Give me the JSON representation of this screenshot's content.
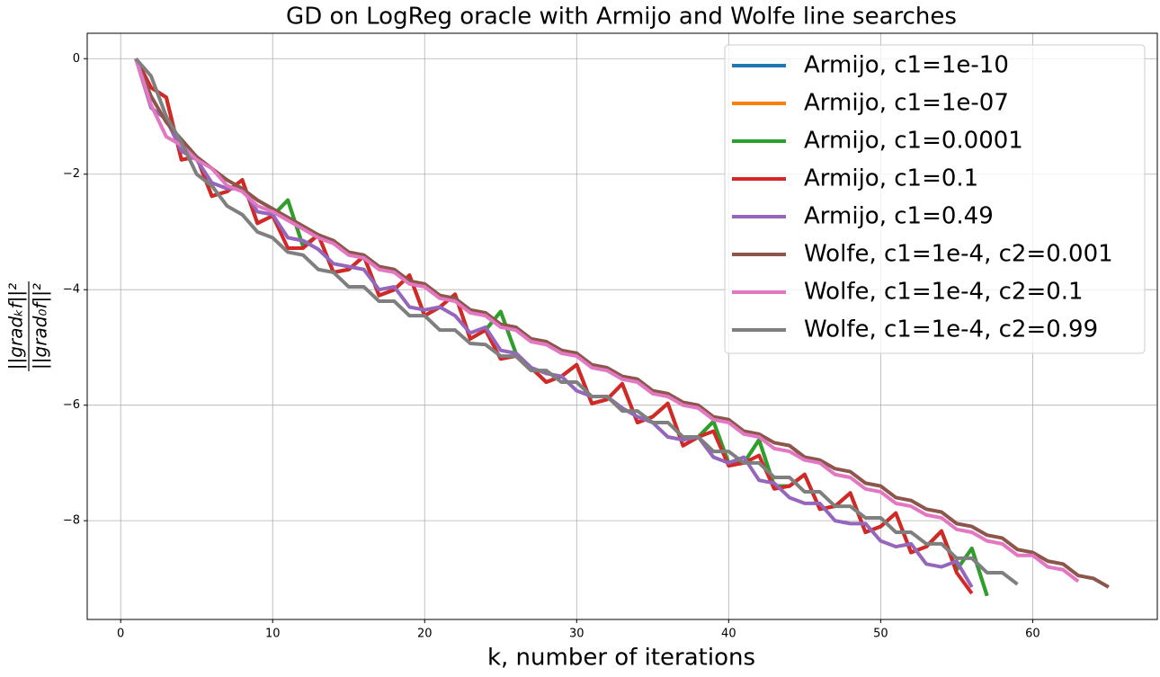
{
  "chart_data": {
    "type": "line",
    "title": "GD on LogReg oracle with Armijo and Wolfe line searches",
    "x_label": "k, number of iterations",
    "y_label": {
      "numerator": "||gradₖf||²",
      "denominator": "||grad₀f||²"
    },
    "xlim": [
      -2.2,
      68.2
    ],
    "ylim": [
      -9.71,
      0.44
    ],
    "xticks": [
      0,
      10,
      20,
      30,
      40,
      50,
      60
    ],
    "yticks": [
      {
        "value": 0,
        "label": "0"
      },
      {
        "value": -2,
        "label": "−2"
      },
      {
        "value": -4,
        "label": "−4"
      },
      {
        "value": -6,
        "label": "−6"
      },
      {
        "value": -8,
        "label": "−8"
      }
    ],
    "grid": true,
    "legend": "upper right",
    "series": [
      {
        "name": "Armijo, c1=1e-10",
        "color": "#1f77b4",
        "x": [
          1,
          2,
          3,
          4,
          5,
          6,
          7,
          8,
          9,
          10,
          11,
          12,
          13,
          14,
          15,
          16,
          17,
          18,
          19,
          20,
          21,
          22,
          23,
          24,
          25,
          26,
          27,
          28,
          29,
          30,
          31,
          32,
          33,
          34,
          35,
          36,
          37,
          38,
          39,
          40,
          41,
          42,
          43,
          44,
          45,
          46,
          47,
          48,
          49,
          50,
          51,
          52,
          53,
          54,
          55,
          56,
          57
        ],
        "values": [
          0,
          -0.5,
          -0.67,
          -1.75,
          -1.7,
          -2.38,
          -2.3,
          -2.1,
          -2.85,
          -2.72,
          -2.45,
          -3.25,
          -3.05,
          -3.7,
          -3.65,
          -3.42,
          -4.1,
          -4.0,
          -3.75,
          -4.45,
          -4.3,
          -4.08,
          -4.85,
          -4.7,
          -4.38,
          -5.1,
          -5.35,
          -5.6,
          -5.5,
          -5.3,
          -5.97,
          -5.9,
          -5.63,
          -6.3,
          -6.2,
          -5.97,
          -6.7,
          -6.55,
          -6.28,
          -7.0,
          -7.0,
          -6.6,
          -7.4,
          -7.4,
          -7.2,
          -7.8,
          -7.75,
          -7.52,
          -8.2,
          -8.1,
          -7.87,
          -8.55,
          -8.45,
          -8.18,
          -8.85,
          -8.48,
          -9.3
        ]
      },
      {
        "name": "Armijo, c1=1e-07",
        "color": "#ff7f0e",
        "x": [
          1,
          2,
          3,
          4,
          5,
          6,
          7,
          8,
          9,
          10,
          11,
          12,
          13,
          14,
          15,
          16,
          17,
          18,
          19,
          20,
          21,
          22,
          23,
          24,
          25,
          26,
          27,
          28,
          29,
          30,
          31,
          32,
          33,
          34,
          35,
          36,
          37,
          38,
          39,
          40,
          41,
          42,
          43,
          44,
          45,
          46,
          47,
          48,
          49,
          50,
          51,
          52,
          53,
          54,
          55,
          56,
          57
        ],
        "values": [
          0,
          -0.5,
          -0.67,
          -1.75,
          -1.7,
          -2.38,
          -2.3,
          -2.1,
          -2.85,
          -2.72,
          -2.45,
          -3.25,
          -3.05,
          -3.7,
          -3.65,
          -3.42,
          -4.1,
          -4.0,
          -3.75,
          -4.45,
          -4.3,
          -4.08,
          -4.85,
          -4.7,
          -4.38,
          -5.1,
          -5.35,
          -5.6,
          -5.5,
          -5.3,
          -5.97,
          -5.9,
          -5.63,
          -6.3,
          -6.2,
          -5.97,
          -6.7,
          -6.55,
          -6.28,
          -7.0,
          -7.0,
          -6.6,
          -7.4,
          -7.4,
          -7.2,
          -7.8,
          -7.75,
          -7.52,
          -8.2,
          -8.1,
          -7.87,
          -8.55,
          -8.45,
          -8.18,
          -8.85,
          -8.48,
          -9.3
        ]
      },
      {
        "name": "Armijo, c1=0.0001",
        "color": "#2ca02c",
        "x": [
          1,
          2,
          3,
          4,
          5,
          6,
          7,
          8,
          9,
          10,
          11,
          12,
          13,
          14,
          15,
          16,
          17,
          18,
          19,
          20,
          21,
          22,
          23,
          24,
          25,
          26,
          27,
          28,
          29,
          30,
          31,
          32,
          33,
          34,
          35,
          36,
          37,
          38,
          39,
          40,
          41,
          42,
          43,
          44,
          45,
          46,
          47,
          48,
          49,
          50,
          51,
          52,
          53,
          54,
          55,
          56,
          57
        ],
        "values": [
          0,
          -0.5,
          -0.67,
          -1.75,
          -1.7,
          -2.38,
          -2.3,
          -2.1,
          -2.85,
          -2.72,
          -2.45,
          -3.25,
          -3.05,
          -3.7,
          -3.65,
          -3.42,
          -4.1,
          -4.0,
          -3.75,
          -4.45,
          -4.3,
          -4.08,
          -4.85,
          -4.7,
          -4.38,
          -5.1,
          -5.35,
          -5.6,
          -5.5,
          -5.3,
          -5.97,
          -5.9,
          -5.63,
          -6.3,
          -6.2,
          -5.97,
          -6.7,
          -6.55,
          -6.28,
          -7.0,
          -7.0,
          -6.6,
          -7.4,
          -7.4,
          -7.2,
          -7.8,
          -7.75,
          -7.52,
          -8.2,
          -8.1,
          -7.87,
          -8.55,
          -8.45,
          -8.18,
          -8.85,
          -8.48,
          -9.3
        ]
      },
      {
        "name": "Armijo, c1=0.1",
        "color": "#d62728",
        "x": [
          1,
          2,
          3,
          4,
          5,
          6,
          7,
          8,
          9,
          10,
          11,
          12,
          13,
          14,
          15,
          16,
          17,
          18,
          19,
          20,
          21,
          22,
          23,
          24,
          25,
          26,
          27,
          28,
          29,
          30,
          31,
          32,
          33,
          34,
          35,
          36,
          37,
          38,
          39,
          40,
          41,
          42,
          43,
          44,
          45,
          46,
          47,
          48,
          49,
          50,
          51,
          52,
          53,
          54,
          55,
          56
        ],
        "values": [
          0,
          -0.5,
          -0.67,
          -1.75,
          -1.7,
          -2.38,
          -2.3,
          -2.1,
          -2.85,
          -2.72,
          -3.28,
          -3.28,
          -3.05,
          -3.7,
          -3.65,
          -3.42,
          -4.1,
          -4.0,
          -3.75,
          -4.45,
          -4.3,
          -4.08,
          -4.85,
          -4.7,
          -5.2,
          -5.15,
          -5.35,
          -5.6,
          -5.5,
          -5.3,
          -5.97,
          -5.9,
          -5.63,
          -6.3,
          -6.2,
          -5.97,
          -6.7,
          -6.55,
          -6.45,
          -7.05,
          -7.0,
          -6.87,
          -7.45,
          -7.4,
          -7.2,
          -7.8,
          -7.75,
          -7.52,
          -8.2,
          -8.1,
          -7.87,
          -8.55,
          -8.45,
          -8.18,
          -8.9,
          -9.26
        ]
      },
      {
        "name": "Armijo, c1=0.49",
        "color": "#9467bd",
        "x": [
          1,
          2,
          3,
          4,
          5,
          6,
          7,
          8,
          9,
          10,
          11,
          12,
          13,
          14,
          15,
          16,
          17,
          18,
          19,
          20,
          21,
          22,
          23,
          24,
          25,
          26,
          27,
          28,
          29,
          30,
          31,
          32,
          33,
          34,
          35,
          36,
          37,
          38,
          39,
          40,
          41,
          42,
          43,
          44,
          45,
          46,
          47,
          48,
          49,
          50,
          51,
          52,
          53,
          54,
          55,
          56
        ],
        "values": [
          0,
          -0.85,
          -1.05,
          -1.6,
          -1.75,
          -2.15,
          -2.25,
          -2.25,
          -2.65,
          -2.7,
          -3.1,
          -3.15,
          -3.3,
          -3.55,
          -3.6,
          -3.65,
          -4.0,
          -3.95,
          -4.3,
          -4.35,
          -4.3,
          -4.45,
          -4.75,
          -4.65,
          -5.05,
          -5.1,
          -5.35,
          -5.45,
          -5.5,
          -5.75,
          -5.85,
          -5.85,
          -6.05,
          -6.2,
          -6.3,
          -6.55,
          -6.6,
          -6.55,
          -6.9,
          -7.0,
          -6.9,
          -7.3,
          -7.35,
          -7.6,
          -7.7,
          -7.7,
          -8.0,
          -8.05,
          -8.05,
          -8.35,
          -8.45,
          -8.4,
          -8.75,
          -8.8,
          -8.7,
          -9.15
        ]
      },
      {
        "name": "Wolfe, c1=1e-4, c2=0.001",
        "color": "#8c564b",
        "x": [
          1,
          2,
          3,
          4,
          5,
          6,
          7,
          8,
          9,
          10,
          11,
          12,
          13,
          14,
          15,
          16,
          17,
          18,
          19,
          20,
          21,
          22,
          23,
          24,
          25,
          26,
          27,
          28,
          29,
          30,
          31,
          32,
          33,
          34,
          35,
          36,
          37,
          38,
          39,
          40,
          41,
          42,
          43,
          44,
          45,
          46,
          47,
          48,
          49,
          50,
          51,
          52,
          53,
          54,
          55,
          56,
          57,
          58,
          59,
          60,
          61,
          62,
          63,
          64,
          65
        ],
        "values": [
          0,
          -0.65,
          -1.1,
          -1.4,
          -1.7,
          -1.9,
          -2.1,
          -2.25,
          -2.45,
          -2.6,
          -2.75,
          -2.9,
          -3.05,
          -3.15,
          -3.35,
          -3.4,
          -3.6,
          -3.65,
          -3.85,
          -3.9,
          -4.1,
          -4.15,
          -4.35,
          -4.4,
          -4.6,
          -4.65,
          -4.85,
          -4.9,
          -5.05,
          -5.1,
          -5.3,
          -5.35,
          -5.5,
          -5.55,
          -5.75,
          -5.8,
          -5.95,
          -6.0,
          -6.2,
          -6.25,
          -6.45,
          -6.5,
          -6.65,
          -6.7,
          -6.9,
          -6.95,
          -7.1,
          -7.15,
          -7.35,
          -7.4,
          -7.6,
          -7.65,
          -7.8,
          -7.85,
          -8.05,
          -8.1,
          -8.25,
          -8.3,
          -8.5,
          -8.55,
          -8.7,
          -8.75,
          -8.95,
          -9.0,
          -9.15
        ]
      },
      {
        "name": "Wolfe, c1=1e-4, c2=0.1",
        "color": "#e377c2",
        "x": [
          1,
          2,
          3,
          4,
          5,
          6,
          7,
          8,
          9,
          10,
          11,
          12,
          13,
          14,
          15,
          16,
          17,
          18,
          19,
          20,
          21,
          22,
          23,
          24,
          25,
          26,
          27,
          28,
          29,
          30,
          31,
          32,
          33,
          34,
          35,
          36,
          37,
          38,
          39,
          40,
          41,
          42,
          43,
          44,
          45,
          46,
          47,
          48,
          49,
          50,
          51,
          52,
          53,
          54,
          55,
          56,
          57,
          58,
          59,
          60,
          61,
          62,
          63
        ],
        "values": [
          0,
          -0.8,
          -1.35,
          -1.5,
          -1.75,
          -1.9,
          -2.2,
          -2.3,
          -2.55,
          -2.65,
          -2.8,
          -2.95,
          -3.1,
          -3.2,
          -3.4,
          -3.45,
          -3.65,
          -3.7,
          -3.9,
          -3.95,
          -4.15,
          -4.2,
          -4.4,
          -4.45,
          -4.65,
          -4.7,
          -4.9,
          -4.95,
          -5.1,
          -5.15,
          -5.35,
          -5.4,
          -5.55,
          -5.6,
          -5.8,
          -5.85,
          -6.0,
          -6.05,
          -6.25,
          -6.3,
          -6.5,
          -6.55,
          -6.75,
          -6.8,
          -6.95,
          -7.0,
          -7.2,
          -7.25,
          -7.45,
          -7.5,
          -7.7,
          -7.75,
          -7.9,
          -7.95,
          -8.15,
          -8.2,
          -8.35,
          -8.4,
          -8.6,
          -8.6,
          -8.8,
          -8.85,
          -9.05
        ]
      },
      {
        "name": "Wolfe, c1=1e-4, c2=0.99",
        "color": "#7f7f7f",
        "x": [
          1,
          2,
          3,
          4,
          5,
          6,
          7,
          8,
          9,
          10,
          11,
          12,
          13,
          14,
          15,
          16,
          17,
          18,
          19,
          20,
          21,
          22,
          23,
          24,
          25,
          26,
          27,
          28,
          29,
          30,
          31,
          32,
          33,
          34,
          35,
          36,
          37,
          38,
          39,
          40,
          41,
          42,
          43,
          44,
          45,
          46,
          47,
          48,
          49,
          50,
          51,
          52,
          53,
          54,
          55,
          56,
          57,
          58,
          59
        ],
        "values": [
          0,
          -0.3,
          -1.0,
          -1.45,
          -2.0,
          -2.2,
          -2.55,
          -2.7,
          -3.0,
          -3.1,
          -3.35,
          -3.4,
          -3.65,
          -3.7,
          -3.95,
          -3.95,
          -4.2,
          -4.2,
          -4.45,
          -4.45,
          -4.7,
          -4.7,
          -4.93,
          -4.95,
          -5.15,
          -5.15,
          -5.4,
          -5.4,
          -5.6,
          -5.6,
          -5.85,
          -5.85,
          -6.1,
          -6.1,
          -6.3,
          -6.3,
          -6.55,
          -6.55,
          -6.8,
          -6.8,
          -7.0,
          -7.0,
          -7.25,
          -7.25,
          -7.5,
          -7.5,
          -7.75,
          -7.75,
          -7.95,
          -7.95,
          -8.2,
          -8.2,
          -8.4,
          -8.4,
          -8.65,
          -8.65,
          -8.9,
          -8.9,
          -9.1
        ]
      }
    ]
  }
}
